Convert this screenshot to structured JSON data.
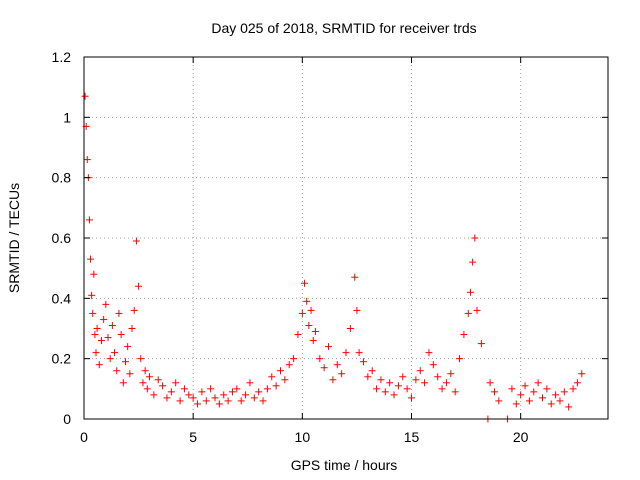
{
  "chart_data": {
    "type": "scatter",
    "title": "Day 025 of 2018, SRMTID for receiver trds",
    "xlabel": "GPS time / hours",
    "ylabel": "SRMTID / TECUs",
    "xlim": [
      0,
      24
    ],
    "ylim": [
      0,
      1.2
    ],
    "xticks": [
      0,
      5,
      10,
      15,
      20
    ],
    "xtick_labels": [
      "0",
      "5",
      "10",
      "15",
      "20"
    ],
    "yticks": [
      0,
      0.2,
      0.4,
      0.6,
      0.8,
      1.0,
      1.2
    ],
    "ytick_labels": [
      "0",
      "0.2",
      "0.4",
      "0.6",
      "0.8",
      "1",
      "1.2"
    ],
    "grid": true,
    "marker": "+",
    "colors": {
      "series": "#ff0000",
      "grid": "#a0a0a0",
      "frame": "#000000"
    },
    "series": [
      {
        "name": "SRMTID",
        "x": [
          0.05,
          0.1,
          0.15,
          0.2,
          0.25,
          0.3,
          0.35,
          0.4,
          0.45,
          0.5,
          0.55,
          0.6,
          0.7,
          0.8,
          0.9,
          1.0,
          1.1,
          1.2,
          1.3,
          1.4,
          1.5,
          1.6,
          1.7,
          1.8,
          1.9,
          2.0,
          2.1,
          2.2,
          2.3,
          2.4,
          2.5,
          2.6,
          2.7,
          2.8,
          2.9,
          3.0,
          3.2,
          3.4,
          3.6,
          3.8,
          4.0,
          4.2,
          4.4,
          4.6,
          4.8,
          5.0,
          5.2,
          5.4,
          5.6,
          5.8,
          6.0,
          6.2,
          6.4,
          6.6,
          6.8,
          7.0,
          7.2,
          7.4,
          7.6,
          7.8,
          8.0,
          8.2,
          8.4,
          8.6,
          8.8,
          9.0,
          9.2,
          9.4,
          9.6,
          9.8,
          10.0,
          10.1,
          10.2,
          10.3,
          10.4,
          10.5,
          10.6,
          10.8,
          11.0,
          11.2,
          11.4,
          11.6,
          11.8,
          12.0,
          12.2,
          12.4,
          12.5,
          12.6,
          12.8,
          13.0,
          13.2,
          13.4,
          13.6,
          13.8,
          14.0,
          14.2,
          14.4,
          14.6,
          14.8,
          15.0,
          15.2,
          15.4,
          15.6,
          15.8,
          16.0,
          16.2,
          16.4,
          16.6,
          16.8,
          17.0,
          17.2,
          17.4,
          17.6,
          17.7,
          17.8,
          17.9,
          18.0,
          18.2,
          18.5,
          18.6,
          18.8,
          19.0,
          19.4,
          19.6,
          19.8,
          20.0,
          20.2,
          20.4,
          20.6,
          20.8,
          21.0,
          21.2,
          21.4,
          21.6,
          21.8,
          22.0,
          22.2,
          22.4,
          22.6,
          22.8
        ],
        "y": [
          1.07,
          0.97,
          0.86,
          0.8,
          0.66,
          0.53,
          0.41,
          0.35,
          0.48,
          0.28,
          0.22,
          0.3,
          0.18,
          0.26,
          0.33,
          0.38,
          0.27,
          0.2,
          0.31,
          0.22,
          0.16,
          0.35,
          0.28,
          0.12,
          0.19,
          0.24,
          0.15,
          0.3,
          0.36,
          0.59,
          0.44,
          0.2,
          0.12,
          0.16,
          0.1,
          0.14,
          0.08,
          0.13,
          0.11,
          0.07,
          0.09,
          0.12,
          0.06,
          0.1,
          0.08,
          0.07,
          0.05,
          0.09,
          0.06,
          0.1,
          0.07,
          0.05,
          0.08,
          0.06,
          0.09,
          0.1,
          0.06,
          0.08,
          0.12,
          0.07,
          0.09,
          0.06,
          0.1,
          0.14,
          0.11,
          0.16,
          0.13,
          0.18,
          0.2,
          0.28,
          0.35,
          0.45,
          0.39,
          0.31,
          0.36,
          0.26,
          0.29,
          0.2,
          0.17,
          0.24,
          0.13,
          0.18,
          0.15,
          0.22,
          0.3,
          0.47,
          0.36,
          0.22,
          0.19,
          0.14,
          0.16,
          0.1,
          0.13,
          0.09,
          0.12,
          0.08,
          0.11,
          0.14,
          0.1,
          0.07,
          0.13,
          0.16,
          0.12,
          0.22,
          0.18,
          0.14,
          0.1,
          0.12,
          0.15,
          0.09,
          0.2,
          0.28,
          0.35,
          0.42,
          0.52,
          0.6,
          0.36,
          0.25,
          0.0,
          0.12,
          0.09,
          0.06,
          0.0,
          0.1,
          0.05,
          0.08,
          0.11,
          0.06,
          0.09,
          0.12,
          0.07,
          0.1,
          0.05,
          0.08,
          0.06,
          0.09,
          0.04,
          0.1,
          0.12,
          0.15
        ]
      }
    ]
  }
}
